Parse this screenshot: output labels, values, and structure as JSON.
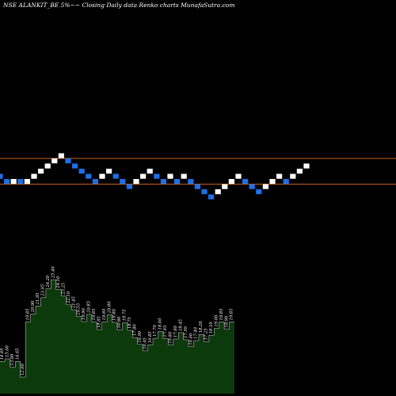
{
  "header": {
    "title": "NSE ALANKIT_BE 5%~~ Closing Daily data  Renko  charts MunafaSutra.com"
  },
  "colors": {
    "background": "#000000",
    "up_brick": "#ffffff",
    "down_brick": "#1e6fe8",
    "level_line": "#c8621e",
    "volume_fill": "#0d3a0d",
    "volume_outline": "#d8d8d8"
  },
  "chart_data": [
    {
      "type": "renko",
      "brick_size_note": "5%",
      "bricks": [
        {
          "dir": "down",
          "level": 0
        },
        {
          "dir": "down",
          "level": -1
        },
        {
          "dir": "up",
          "level": -1
        },
        {
          "dir": "down",
          "level": -1
        },
        {
          "dir": "up",
          "level": -1
        },
        {
          "dir": "up",
          "level": 0
        },
        {
          "dir": "up",
          "level": 1
        },
        {
          "dir": "up",
          "level": 2
        },
        {
          "dir": "up",
          "level": 3
        },
        {
          "dir": "up",
          "level": 4
        },
        {
          "dir": "down",
          "level": 3
        },
        {
          "dir": "down",
          "level": 2
        },
        {
          "dir": "down",
          "level": 1
        },
        {
          "dir": "down",
          "level": 0
        },
        {
          "dir": "down",
          "level": -1
        },
        {
          "dir": "up",
          "level": 0
        },
        {
          "dir": "up",
          "level": 1
        },
        {
          "dir": "down",
          "level": 0
        },
        {
          "dir": "down",
          "level": -1
        },
        {
          "dir": "down",
          "level": -2
        },
        {
          "dir": "up",
          "level": -1
        },
        {
          "dir": "up",
          "level": 0
        },
        {
          "dir": "up",
          "level": 1
        },
        {
          "dir": "down",
          "level": 0
        },
        {
          "dir": "down",
          "level": -1
        },
        {
          "dir": "up",
          "level": 0
        },
        {
          "dir": "down",
          "level": -1
        },
        {
          "dir": "up",
          "level": 0
        },
        {
          "dir": "down",
          "level": -1
        },
        {
          "dir": "down",
          "level": -2
        },
        {
          "dir": "down",
          "level": -3
        },
        {
          "dir": "down",
          "level": -4
        },
        {
          "dir": "up",
          "level": -3
        },
        {
          "dir": "up",
          "level": -2
        },
        {
          "dir": "up",
          "level": -1
        },
        {
          "dir": "up",
          "level": 0
        },
        {
          "dir": "down",
          "level": -1
        },
        {
          "dir": "down",
          "level": -2
        },
        {
          "dir": "down",
          "level": -3
        },
        {
          "dir": "up",
          "level": -2
        },
        {
          "dir": "up",
          "level": -1
        },
        {
          "dir": "up",
          "level": 0
        },
        {
          "dir": "down",
          "level": -1
        },
        {
          "dir": "up",
          "level": 0
        },
        {
          "dir": "up",
          "level": 1
        },
        {
          "dir": "up",
          "level": 2
        }
      ],
      "reference_lines": [
        {
          "label": "",
          "level": 3.5
        },
        {
          "label": "",
          "level": -1.5
        }
      ]
    },
    {
      "type": "area",
      "values": [
        14.65,
        15.0,
        13.9,
        14.65,
        12.6,
        19.85,
        20.9,
        21.95,
        23.05,
        24.2,
        25.4,
        24.1,
        23.25,
        22.1,
        21.45,
        20.55,
        19.9,
        20.85,
        19.85,
        18.85,
        19.85,
        20.8,
        19.8,
        18.8,
        19.75,
        18.75,
        17.8,
        16.9,
        16.05,
        16.85,
        17.7,
        18.6,
        17.65,
        16.8,
        17.6,
        18.45,
        17.5,
        16.6,
        17.4,
        18.2,
        17.25,
        18.1,
        19.0,
        19.85,
        18.9,
        19.85
      ],
      "labels": [
        "14.65",
        "15.00",
        "13.90",
        "14.65",
        "12.60",
        "19.85",
        "20.90",
        "21.95",
        "23.05",
        "24.20",
        "25.40",
        "24.10",
        "23.25",
        "22.10",
        "21.45",
        "20.55",
        "19.90",
        "20.85",
        "19.85",
        "18.85",
        "19.85",
        "20.80",
        "19.80",
        "18.80",
        "19.75",
        "18.75",
        "17.80",
        "16.90",
        "16.05",
        "16.85",
        "17.70",
        "18.60",
        "17.65",
        "16.80",
        "17.60",
        "18.45",
        "17.50",
        "16.60",
        "17.40",
        "18.20",
        "17.25",
        "18.10",
        "19.00",
        "19.85",
        "18.90",
        "19.85"
      ]
    }
  ]
}
